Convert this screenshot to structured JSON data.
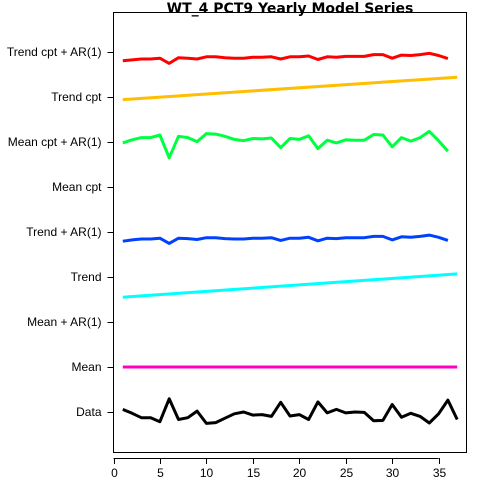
{
  "chart_data": {
    "type": "line",
    "title": "WT_4 PCT9 Yearly Model Series",
    "xlabel": "",
    "ylabel": "",
    "xlim": [
      0,
      38
    ],
    "xticks": [
      0,
      5,
      10,
      15,
      20,
      25,
      30,
      35
    ],
    "grid": false,
    "legend": "none",
    "row_labels": [
      "Trend cpt + AR(1)",
      "Trend cpt",
      "Mean cpt + AR(1)",
      "Mean cpt",
      "Trend + AR(1)",
      "Trend",
      "Mean + AR(1)",
      "Mean",
      "Data"
    ],
    "x": [
      1,
      2,
      3,
      4,
      5,
      6,
      7,
      8,
      9,
      10,
      11,
      12,
      13,
      14,
      15,
      16,
      17,
      18,
      19,
      20,
      21,
      22,
      23,
      24,
      25,
      26,
      27,
      28,
      29,
      30,
      31,
      32,
      33,
      34,
      35,
      36,
      37
    ],
    "series": [
      {
        "row": "Trend cpt + AR(1)",
        "color": "#ff0000",
        "offsets": [
          0.7,
          0.68,
          0.66,
          0.66,
          0.64,
          0.76,
          0.63,
          0.64,
          0.66,
          0.61,
          0.61,
          0.63,
          0.64,
          0.64,
          0.62,
          0.62,
          0.61,
          0.66,
          0.61,
          0.61,
          0.59,
          0.67,
          0.61,
          0.62,
          0.6,
          0.6,
          0.6,
          0.56,
          0.56,
          0.64,
          0.57,
          0.58,
          0.56,
          0.53,
          0.58,
          0.65
        ]
      },
      {
        "row": "Trend cpt",
        "color": "#ffbe00",
        "linear": [
          0.56,
          0.05
        ]
      },
      {
        "row": "Mean cpt + AR(1)",
        "color": "#00ff40",
        "offsets": [
          0.52,
          0.45,
          0.4,
          0.4,
          0.34,
          0.86,
          0.37,
          0.4,
          0.49,
          0.31,
          0.32,
          0.37,
          0.44,
          0.47,
          0.42,
          0.43,
          0.41,
          0.63,
          0.42,
          0.44,
          0.36,
          0.65,
          0.46,
          0.52,
          0.45,
          0.46,
          0.46,
          0.33,
          0.34,
          0.61,
          0.4,
          0.48,
          0.4,
          0.26,
          0.47,
          0.71
        ]
      },
      {
        "row": "Mean cpt",
        "color": "#00ffa0",
        "constant": null
      },
      {
        "row": "Trend + AR(1)",
        "color": "#0040ff",
        "offsets": [
          0.71,
          0.68,
          0.66,
          0.66,
          0.64,
          0.76,
          0.64,
          0.65,
          0.67,
          0.63,
          0.63,
          0.65,
          0.66,
          0.66,
          0.64,
          0.64,
          0.63,
          0.69,
          0.64,
          0.64,
          0.62,
          0.7,
          0.64,
          0.65,
          0.63,
          0.63,
          0.63,
          0.6,
          0.6,
          0.68,
          0.61,
          0.62,
          0.6,
          0.57,
          0.62,
          0.69
        ]
      },
      {
        "row": "Trend",
        "color": "#00ffff",
        "linear": [
          0.96,
          0.43
        ]
      },
      {
        "row": "Mean + AR(1)",
        "color": "#8000ff",
        "constant": null
      },
      {
        "row": "Mean",
        "color": "#ff00bf",
        "constant": 0.5
      },
      {
        "row": "Data",
        "color": "#000000",
        "offsets": [
          0.44,
          0.53,
          0.63,
          0.63,
          0.72,
          0.2,
          0.67,
          0.63,
          0.48,
          0.76,
          0.74,
          0.64,
          0.54,
          0.5,
          0.57,
          0.56,
          0.6,
          0.28,
          0.59,
          0.56,
          0.67,
          0.27,
          0.52,
          0.44,
          0.52,
          0.5,
          0.51,
          0.7,
          0.69,
          0.33,
          0.62,
          0.53,
          0.6,
          0.75,
          0.54,
          0.23,
          0.67
        ]
      }
    ]
  }
}
